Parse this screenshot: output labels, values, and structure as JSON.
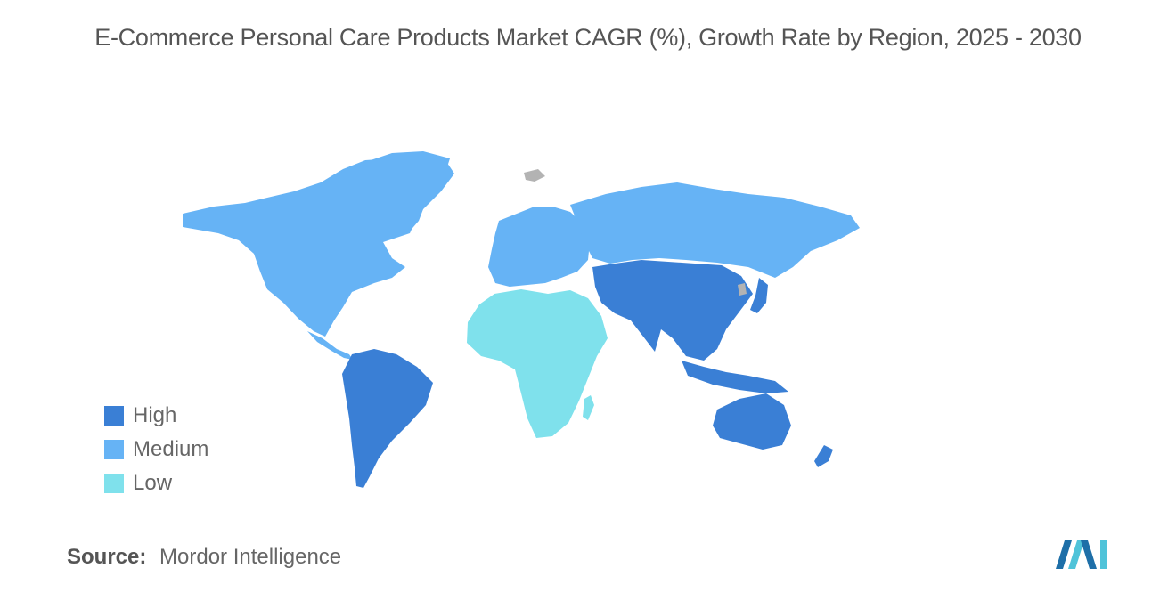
{
  "title": "E-Commerce Personal Care Products Market CAGR (%), Growth Rate by Region, 2025 - 2030",
  "legend": [
    {
      "label": "High",
      "color": "#3a7fd5"
    },
    {
      "label": "Medium",
      "color": "#66b3f5"
    },
    {
      "label": "Low",
      "color": "#7fe1ec"
    }
  ],
  "no_data_color": "#b3b3b3",
  "regions": {
    "north_america": "Medium",
    "europe": "Medium",
    "russia_central_asia": "Medium",
    "south_america": "High",
    "middle_east_africa": "Low",
    "asia_pacific": "High",
    "oceania": "High"
  },
  "source": {
    "label": "Source:",
    "value": "Mordor Intelligence"
  },
  "logo": "mordor-intelligence-logo"
}
